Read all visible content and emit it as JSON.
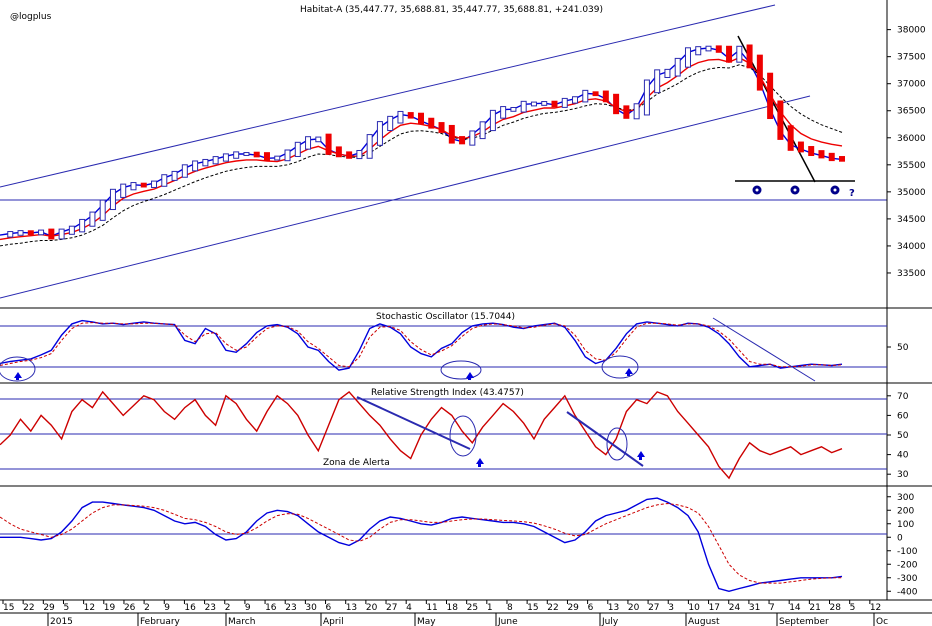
{
  "chart_data": [
    {
      "type": "candlestick",
      "title": "Habitat-A (35,447.77, 35,688.81, 35,447.77, 35,688.81, +241.039)",
      "watermark": "@logplus",
      "ylim": [
        33000,
        38400
      ],
      "yticks": [
        33500,
        34000,
        34500,
        35000,
        35500,
        36000,
        36500,
        37000,
        37500,
        38000
      ],
      "series": [
        {
          "name": "",
          "color": "#0000dd",
          "values": [
            34200,
            34230,
            34250,
            34240,
            34260,
            34180,
            34260,
            34320,
            34430,
            34560,
            34760,
            34960,
            35080,
            35130,
            35120,
            35160,
            35260,
            35330,
            35440,
            35520,
            35560,
            35610,
            35660,
            35700,
            35700,
            35680,
            35620,
            35630,
            35720,
            35850,
            35960,
            35980,
            35780,
            35700,
            35660,
            35720,
            35960,
            36200,
            36330,
            36430,
            36400,
            36310,
            36230,
            36150,
            35980,
            35930,
            36060,
            36220,
            36420,
            36520,
            36530,
            36620,
            36630,
            36640,
            36610,
            36680,
            36720,
            36820,
            36810,
            36720,
            36530,
            36420,
            36560,
            36930,
            37160,
            37220,
            37390,
            37580,
            37640,
            37660,
            37620,
            37470,
            37620,
            37390,
            37020,
            36530,
            36120,
            35870,
            35790,
            35720,
            35670,
            35620,
            35600
          ]
        },
        {
          "name": "",
          "color": "#ee0000",
          "values": [
            34120,
            34150,
            34170,
            34190,
            34210,
            34180,
            34210,
            34250,
            34320,
            34420,
            34560,
            34740,
            34880,
            34960,
            35010,
            35050,
            35130,
            35210,
            35300,
            35380,
            35440,
            35490,
            35540,
            35570,
            35590,
            35590,
            35570,
            35560,
            35610,
            35700,
            35790,
            35840,
            35760,
            35700,
            35660,
            35660,
            35790,
            35960,
            36110,
            36230,
            36270,
            36250,
            36210,
            36150,
            36040,
            35980,
            36020,
            36110,
            36240,
            36340,
            36390,
            36470,
            36510,
            36550,
            36550,
            36590,
            36630,
            36700,
            36720,
            36680,
            36560,
            36480,
            36530,
            36740,
            36920,
            37020,
            37150,
            37300,
            37390,
            37440,
            37450,
            37400,
            37480,
            37380,
            37140,
            36800,
            36480,
            36240,
            36080,
            35980,
            35920,
            35880,
            35850
          ]
        },
        {
          "name": "",
          "color": "#000000",
          "dashed": true,
          "values": [
            34000,
            34030,
            34050,
            34080,
            34100,
            34100,
            34120,
            34150,
            34200,
            34280,
            34380,
            34520,
            34650,
            34750,
            34820,
            34880,
            34950,
            35030,
            35110,
            35190,
            35260,
            35320,
            35380,
            35420,
            35450,
            35470,
            35470,
            35470,
            35500,
            35560,
            35640,
            35700,
            35690,
            35660,
            35640,
            35640,
            35720,
            35840,
            35960,
            36070,
            36120,
            36130,
            36110,
            36080,
            36010,
            35970,
            35990,
            36050,
            36140,
            36230,
            36290,
            36360,
            36410,
            36450,
            36470,
            36500,
            36540,
            36590,
            36630,
            36620,
            36560,
            36510,
            36530,
            36670,
            36810,
            36900,
            37000,
            37120,
            37210,
            37270,
            37300,
            37290,
            37350,
            37300,
            37160,
            36960,
            36760,
            36580,
            36440,
            36330,
            36240,
            36170,
            36100
          ]
        }
      ]
    },
    {
      "type": "line",
      "title": "Stochastic Oscillator (15.7044)",
      "ylim": [
        0,
        100
      ],
      "yticks": [
        50
      ],
      "series": [
        {
          "name": "",
          "color": "#0000dd",
          "values": [
            25,
            28,
            30,
            32,
            38,
            45,
            68,
            85,
            90,
            88,
            85,
            86,
            84,
            86,
            88,
            86,
            85,
            84,
            60,
            55,
            78,
            70,
            45,
            42,
            55,
            72,
            82,
            84,
            80,
            70,
            50,
            45,
            28,
            15,
            18,
            45,
            78,
            85,
            80,
            70,
            50,
            40,
            35,
            48,
            55,
            72,
            82,
            85,
            86,
            84,
            80,
            78,
            82,
            84,
            86,
            80,
            60,
            35,
            25,
            30,
            48,
            70,
            85,
            88,
            86,
            84,
            82,
            86,
            85,
            80,
            70,
            55,
            35,
            20,
            22,
            24,
            18,
            20,
            22,
            24,
            23,
            22,
            24
          ]
        },
        {
          "name": "",
          "color": "#cc0000",
          "dashed": true,
          "values": [
            22,
            25,
            28,
            30,
            34,
            40,
            60,
            78,
            86,
            87,
            86,
            86,
            85,
            85,
            86,
            86,
            85,
            84,
            68,
            58,
            70,
            72,
            55,
            45,
            50,
            65,
            78,
            82,
            81,
            74,
            58,
            48,
            35,
            22,
            20,
            35,
            65,
            80,
            81,
            75,
            58,
            46,
            38,
            44,
            52,
            66,
            78,
            83,
            85,
            84,
            82,
            79,
            80,
            83,
            85,
            82,
            68,
            45,
            32,
            30,
            42,
            62,
            80,
            86,
            86,
            85,
            83,
            85,
            85,
            82,
            74,
            62,
            45,
            28,
            24,
            24,
            20,
            20,
            21,
            23,
            23,
            22,
            23
          ]
        }
      ]
    },
    {
      "type": "line",
      "title": "Relative Strength Index (43.4757)",
      "ylim": [
        25,
        75
      ],
      "yticks": [
        30,
        40,
        50,
        60,
        70
      ],
      "annotation": "Zona de Alerta",
      "series": [
        {
          "name": "",
          "color": "#cc0000",
          "values": [
            45,
            50,
            58,
            52,
            60,
            55,
            48,
            62,
            68,
            64,
            72,
            66,
            60,
            65,
            70,
            68,
            62,
            58,
            64,
            68,
            60,
            55,
            70,
            66,
            58,
            52,
            62,
            70,
            66,
            60,
            50,
            42,
            55,
            68,
            72,
            66,
            60,
            55,
            48,
            42,
            38,
            50,
            58,
            64,
            60,
            52,
            46,
            54,
            60,
            66,
            62,
            56,
            48,
            58,
            64,
            70,
            60,
            52,
            44,
            40,
            48,
            62,
            68,
            66,
            72,
            70,
            62,
            56,
            50,
            44,
            34,
            28,
            38,
            46,
            42,
            40,
            42,
            44,
            40,
            42,
            44,
            41,
            43
          ]
        }
      ]
    },
    {
      "type": "line",
      "yticks": [
        -400,
        -300,
        -200,
        -100,
        0,
        100,
        200,
        300
      ],
      "ylim": [
        -450,
        350
      ],
      "series": [
        {
          "name": "",
          "color": "#0000dd",
          "values": [
            0,
            0,
            0,
            -10,
            -20,
            -10,
            40,
            120,
            220,
            260,
            260,
            250,
            240,
            230,
            220,
            200,
            160,
            120,
            100,
            110,
            80,
            20,
            -20,
            -10,
            40,
            120,
            180,
            200,
            190,
            160,
            100,
            40,
            0,
            -40,
            -60,
            -20,
            60,
            120,
            150,
            140,
            120,
            100,
            90,
            110,
            140,
            150,
            140,
            130,
            120,
            110,
            110,
            100,
            80,
            40,
            0,
            -40,
            -20,
            40,
            120,
            160,
            180,
            200,
            240,
            280,
            290,
            260,
            220,
            160,
            40,
            -200,
            -380,
            -400,
            -380,
            -360,
            -340,
            -330,
            -320,
            -310,
            -300,
            -300,
            -300,
            -300,
            -290
          ]
        },
        {
          "name": "",
          "color": "#cc0000",
          "dashed": true,
          "values": [
            150,
            100,
            60,
            40,
            20,
            0,
            20,
            60,
            120,
            180,
            220,
            240,
            240,
            235,
            230,
            220,
            200,
            170,
            140,
            130,
            110,
            80,
            40,
            20,
            30,
            70,
            120,
            160,
            175,
            170,
            140,
            100,
            60,
            20,
            -20,
            -30,
            0,
            60,
            110,
            130,
            130,
            120,
            110,
            110,
            120,
            130,
            135,
            135,
            130,
            125,
            120,
            115,
            105,
            85,
            60,
            30,
            10,
            20,
            60,
            100,
            130,
            160,
            190,
            220,
            240,
            250,
            240,
            220,
            180,
            80,
            -60,
            -200,
            -280,
            -320,
            -340,
            -340,
            -340,
            -330,
            -320,
            -310,
            -305,
            -300,
            -300
          ]
        }
      ]
    }
  ],
  "xaxis": {
    "days": [
      "15",
      "22",
      "29",
      "5",
      "12",
      "19",
      "26",
      "2",
      "9",
      "16",
      "23",
      "2",
      "9",
      "16",
      "23",
      "30",
      "6",
      "13",
      "20",
      "27",
      "4",
      "11",
      "18",
      "25",
      "1",
      "8",
      "15",
      "22",
      "29",
      "6",
      "13",
      "20",
      "27",
      "3",
      "10",
      "17",
      "24",
      "31",
      "7",
      "14",
      "21",
      "28",
      "5",
      "12"
    ],
    "months": [
      "2015",
      "February",
      "March",
      "April",
      "May",
      "June",
      "July",
      "August",
      "September",
      "Oc"
    ]
  }
}
